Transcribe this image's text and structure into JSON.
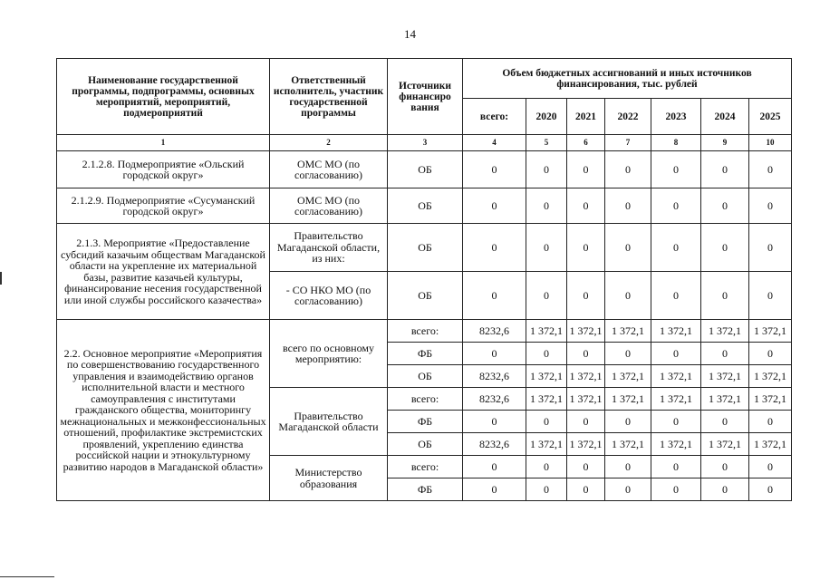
{
  "page_number": "14",
  "header": {
    "col_name": "Наименование государственной программы, подпрограммы, основных мероприятий, мероприятий, подмероприятий",
    "col_executor": "Ответственный исполнитель, участник государственной программы",
    "col_source": "Источники финансиро вания",
    "col_volume": "Объем бюджетных ассигнований и иных источников финансирования, тыс. рублей",
    "total_label": "всего:",
    "years": [
      "2020",
      "2021",
      "2022",
      "2023",
      "2024",
      "2025"
    ],
    "numbers": [
      "1",
      "2",
      "3",
      "4",
      "5",
      "6",
      "7",
      "8",
      "9",
      "10"
    ]
  },
  "sections": [
    {
      "name": "2.1.2.8. Подмероприятие «Ольский городской округ»",
      "h": 41,
      "entries": [
        {
          "executor": "ОМС МО (по согласованию)",
          "lines": [
            {
              "source": "ОБ",
              "values": [
                "0",
                "0",
                "0",
                "0",
                "0",
                "0",
                "0"
              ]
            }
          ]
        }
      ]
    },
    {
      "name": "2.1.2.9. Подмероприятие «Сусуманский городской округ»",
      "h": 39,
      "entries": [
        {
          "executor": "ОМС МО (по согласованию)",
          "lines": [
            {
              "source": "ОБ",
              "values": [
                "0",
                "0",
                "0",
                "0",
                "0",
                "0",
                "0"
              ]
            }
          ]
        }
      ]
    },
    {
      "name": "2.1.3. Мероприятие «Предоставление субсидий казачьим обществам Магаданской области на укрепление их материальной базы, развитие казачьей культуры, финансирование несения государственной или иной службы российского казачества»",
      "h": 53,
      "entries": [
        {
          "executor": "Правительство Магаданской области, из них:",
          "lines": [
            {
              "source": "ОБ",
              "values": [
                "0",
                "0",
                "0",
                "0",
                "0",
                "0",
                "0"
              ]
            }
          ]
        },
        {
          "executor": "- СО НКО МО (по согласованию)",
          "lines": [
            {
              "source": "ОБ",
              "values": [
                "0",
                "0",
                "0",
                "0",
                "0",
                "0",
                "0"
              ]
            }
          ]
        }
      ]
    },
    {
      "name": "2.2. Основное мероприятие «Мероприятия по совершенствованию государственного управления и взаимодействию органов исполнительной власти и местного самоуправления с институтами гражданского общества, мониторингу межнациональных и межконфессиональных отношений, профилактике экстремистских проявлений, укреплению единства российской нации и этнокультурному развитию народов в Магаданской области»",
      "h": 25,
      "entries": [
        {
          "executor": "всего по основному мероприятию:",
          "lines": [
            {
              "source": "всего:",
              "values": [
                "8232,6",
                "1 372,1",
                "1 372,1",
                "1 372,1",
                "1 372,1",
                "1 372,1",
                "1 372,1"
              ]
            },
            {
              "source": "ФБ",
              "values": [
                "0",
                "0",
                "0",
                "0",
                "0",
                "0",
                "0"
              ]
            },
            {
              "source": "ОБ",
              "values": [
                "8232,6",
                "1 372,1",
                "1 372,1",
                "1 372,1",
                "1 372,1",
                "1 372,1",
                "1 372,1"
              ]
            }
          ]
        },
        {
          "executor": "Правительство Магаданской области",
          "lines": [
            {
              "source": "всего:",
              "values": [
                "8232,6",
                "1 372,1",
                "1 372,1",
                "1 372,1",
                "1 372,1",
                "1 372,1",
                "1 372,1"
              ]
            },
            {
              "source": "ФБ",
              "values": [
                "0",
                "0",
                "0",
                "0",
                "0",
                "0",
                "0"
              ]
            },
            {
              "source": "ОБ",
              "values": [
                "8232,6",
                "1 372,1",
                "1 372,1",
                "1 372,1",
                "1 372,1",
                "1 372,1",
                "1 372,1"
              ]
            }
          ]
        },
        {
          "executor": "Министерство образования",
          "lines": [
            {
              "source": "всего:",
              "values": [
                "0",
                "0",
                "0",
                "0",
                "0",
                "0",
                "0"
              ]
            },
            {
              "source": "ФБ",
              "values": [
                "0",
                "0",
                "0",
                "0",
                "0",
                "0",
                "0"
              ]
            }
          ]
        }
      ]
    }
  ]
}
